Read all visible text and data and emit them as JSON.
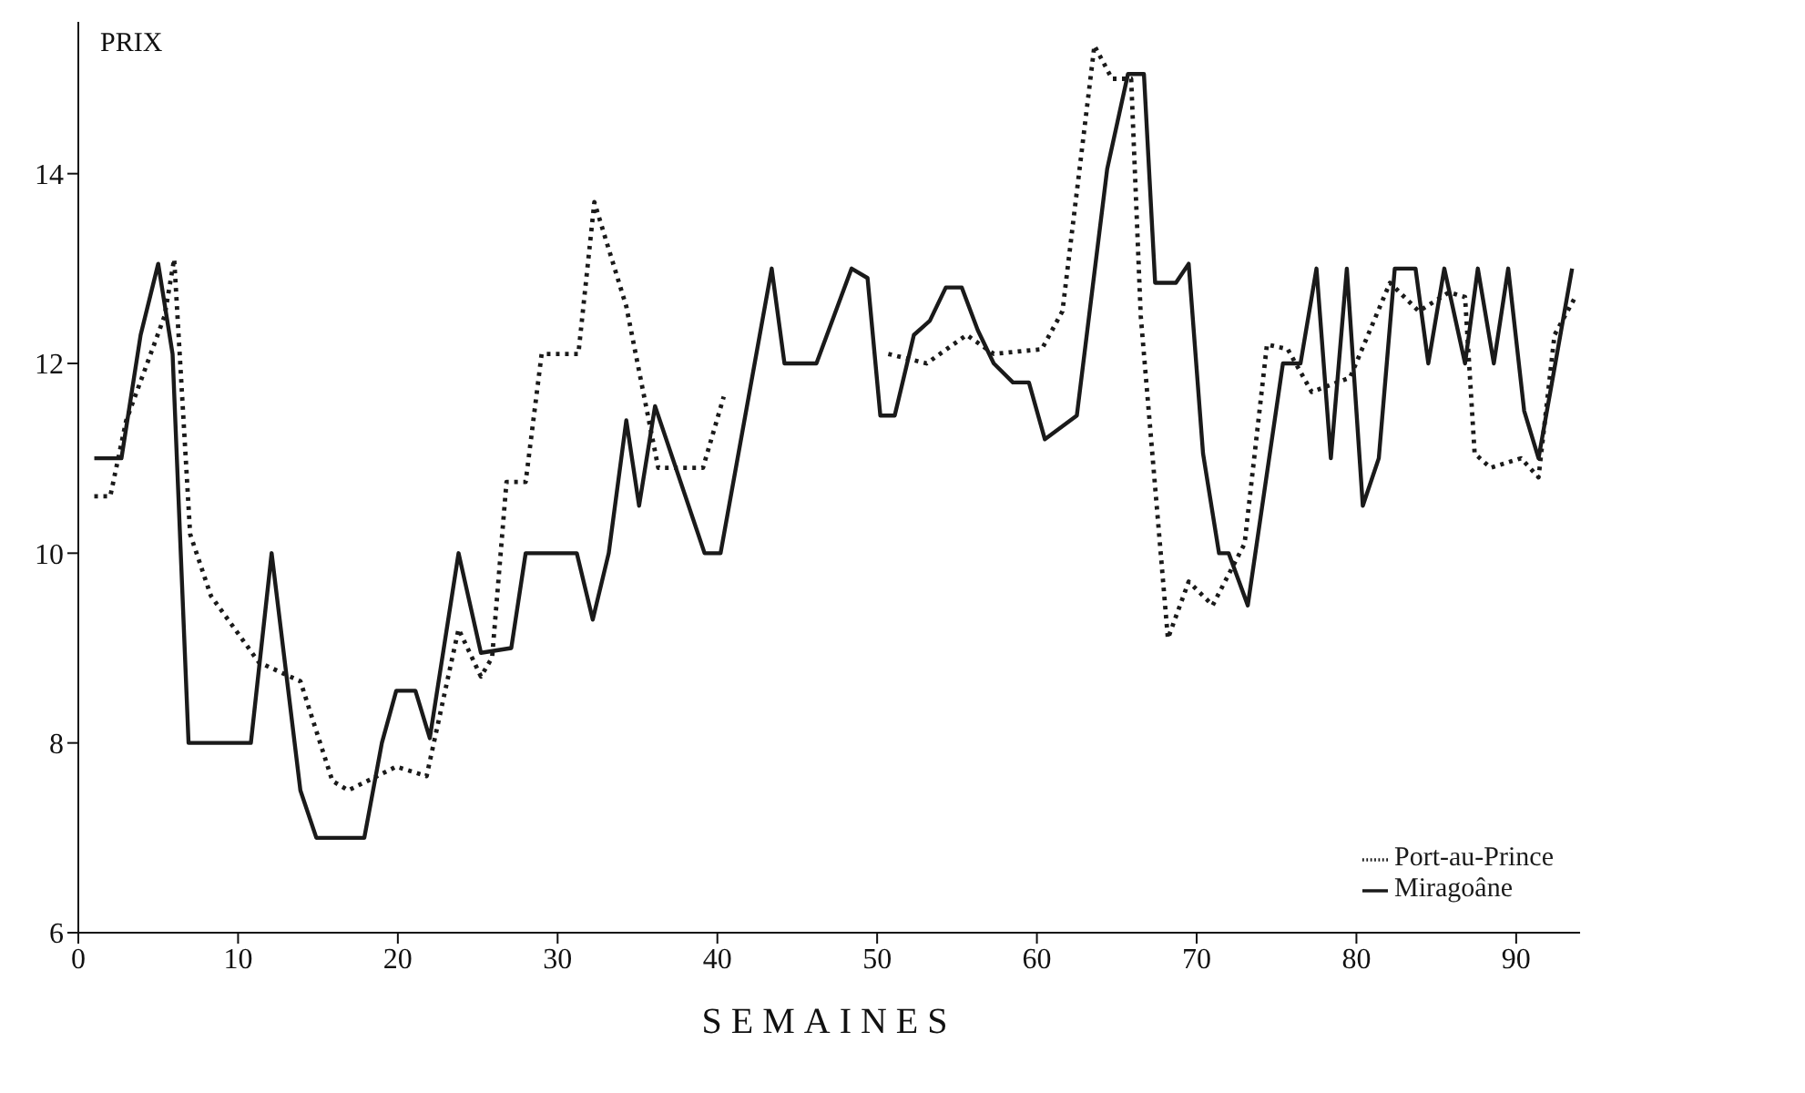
{
  "chart_data": {
    "type": "line",
    "xlabel": "SEMAINES",
    "ylabel": "PRIX",
    "xlim": [
      0,
      94
    ],
    "xticks": [
      0,
      10,
      20,
      30,
      40,
      50,
      60,
      70,
      80,
      90
    ],
    "ylim": [
      6,
      15.6
    ],
    "yticks": [
      6,
      8,
      10,
      12,
      14
    ],
    "legend": "bottom right",
    "marker": "none",
    "series": [
      {
        "name": "Port-au-Prince",
        "color": "#1a1a1a",
        "line_style": "dotted",
        "x": [
          1,
          2,
          3,
          5.4,
          6,
          7,
          8.3,
          11.3,
          13.9,
          15.9,
          16.9,
          19.9,
          21.8,
          23.8,
          25.2,
          25.9,
          26.8,
          28,
          29,
          31.3,
          32.3,
          34.3,
          36.3,
          39.1,
          40.4,
          45,
          50.7,
          53.1,
          55.6,
          57.3,
          60.3,
          61.6,
          63.6,
          64.7,
          65.9,
          66.5,
          68.2,
          69.5,
          71,
          73,
          74.4,
          75.7,
          77.2,
          79.6,
          82.1,
          83.9,
          85.8,
          86.8,
          87.4,
          88.4,
          90.3,
          91.4,
          92.4,
          93.7
        ],
        "values": [
          10.6,
          10.6,
          11.4,
          12.5,
          13.1,
          10.2,
          9.55,
          8.85,
          8.65,
          7.6,
          7.5,
          7.75,
          7.65,
          9.2,
          8.7,
          8.9,
          10.75,
          10.75,
          12.1,
          12.1,
          13.7,
          12.6,
          10.9,
          10.9,
          11.65,
          null,
          12.1,
          12,
          12.3,
          12.1,
          12.15,
          12.55,
          15.35,
          15,
          15,
          12.5,
          9.1,
          9.7,
          9.45,
          10.1,
          12.2,
          12.15,
          11.7,
          11.85,
          12.85,
          12.55,
          12.75,
          12.7,
          11.05,
          10.9,
          11,
          10.8,
          12.3,
          12.7
        ]
      },
      {
        "name": "Miragoâne",
        "color": "#1a1a1a",
        "line_style": "solid",
        "x": [
          1,
          2.7,
          3.9,
          5,
          5.9,
          6.9,
          10.8,
          12.1,
          13.9,
          14.9,
          17.9,
          19,
          19.9,
          21.1,
          22,
          23.8,
          25.2,
          27.1,
          28,
          31.2,
          32.2,
          33.2,
          34.3,
          35.1,
          36.1,
          39.2,
          40.2,
          43.4,
          44.2,
          46.2,
          48.4,
          49.4,
          50.2,
          51.1,
          52.3,
          53.3,
          54.3,
          55.3,
          56.3,
          57.3,
          58.5,
          59.5,
          60.5,
          62.5,
          64.4,
          65.7,
          66.7,
          67.4,
          68.7,
          69.5,
          70.4,
          71.4,
          72,
          73.2,
          75.4,
          76.5,
          77.5,
          78.4,
          79.4,
          80.4,
          81.4,
          82.4,
          83.7,
          84.5,
          85.5,
          86.8,
          87.6,
          88.6,
          89.5,
          90.5,
          91.4,
          93.5
        ],
        "values": [
          11,
          11,
          12.3,
          13.05,
          12.1,
          8,
          8,
          10,
          7.5,
          7,
          7,
          8,
          8.55,
          8.55,
          8.05,
          10,
          8.95,
          9,
          10,
          10,
          9.3,
          10,
          11.4,
          10.5,
          11.55,
          10,
          10,
          13,
          12,
          12,
          13,
          12.9,
          11.45,
          11.45,
          12.3,
          12.45,
          12.8,
          12.8,
          12.35,
          12,
          11.8,
          11.8,
          11.2,
          11.45,
          14.05,
          15.05,
          15.05,
          12.85,
          12.85,
          13.05,
          11.05,
          10,
          10,
          9.45,
          12,
          12,
          13,
          11,
          13,
          10.5,
          11,
          13,
          13,
          12,
          13,
          12,
          13,
          12,
          13,
          11.5,
          11,
          13
        ]
      }
    ]
  }
}
